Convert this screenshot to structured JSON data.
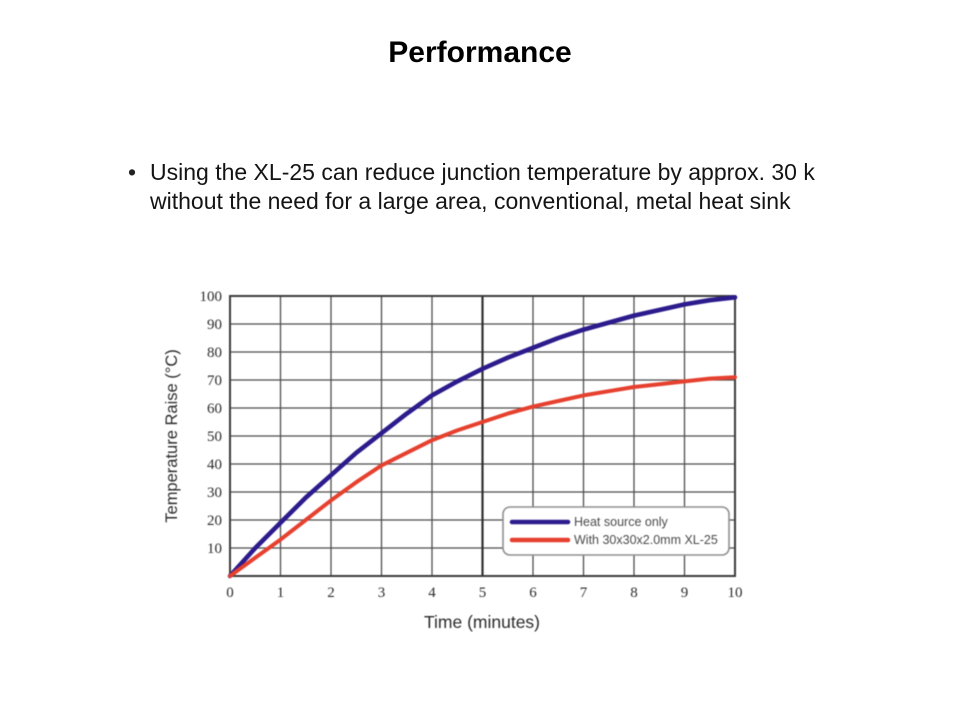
{
  "slide": {
    "title": "Performance",
    "bullet": {
      "marker": "•",
      "lines": [
        "Using the XL-25 can reduce junction temperature by approx. 30 k",
        "without the need for a large area, conventional, metal heat sink"
      ]
    }
  },
  "chart_data": {
    "type": "line",
    "title": "",
    "xlabel": "Time (minutes)",
    "ylabel": "Temperature Raise (°C)",
    "xlim": [
      0,
      10
    ],
    "ylim": [
      0,
      100
    ],
    "x_ticks": [
      0,
      1,
      2,
      3,
      4,
      5,
      6,
      7,
      8,
      9,
      10
    ],
    "y_ticks": [
      10,
      20,
      30,
      40,
      50,
      60,
      70,
      80,
      90,
      100
    ],
    "grid": true,
    "legend_position": "lower right",
    "x": [
      0,
      0.5,
      1,
      1.5,
      2,
      2.5,
      3,
      3.5,
      4,
      4.5,
      5,
      5.5,
      6,
      6.5,
      7,
      7.5,
      8,
      8.5,
      9,
      9.5,
      10
    ],
    "series": [
      {
        "name": "Heat source only",
        "color": "#2b1b8c",
        "values": [
          0,
          10,
          19,
          28,
          36,
          44,
          51,
          58,
          64.5,
          69.5,
          74,
          78,
          81.5,
          85,
          88,
          90.5,
          93,
          95,
          97,
          98.5,
          99.5
        ]
      },
      {
        "name": "With 30x30x2.0mm XL-25",
        "color": "#e6402e",
        "values": [
          0,
          6.5,
          13,
          20,
          27,
          33.5,
          39.5,
          44,
          48.5,
          52,
          55,
          58,
          60.5,
          62.5,
          64.5,
          66,
          67.5,
          68.5,
          69.5,
          70.5,
          71
        ]
      }
    ]
  },
  "colors": {
    "background": "#ffffff",
    "grid": "#4d4d4d",
    "plot_border": "#3c3c3c",
    "legend_border": "#8f8f8f",
    "body_text": "#141414"
  }
}
